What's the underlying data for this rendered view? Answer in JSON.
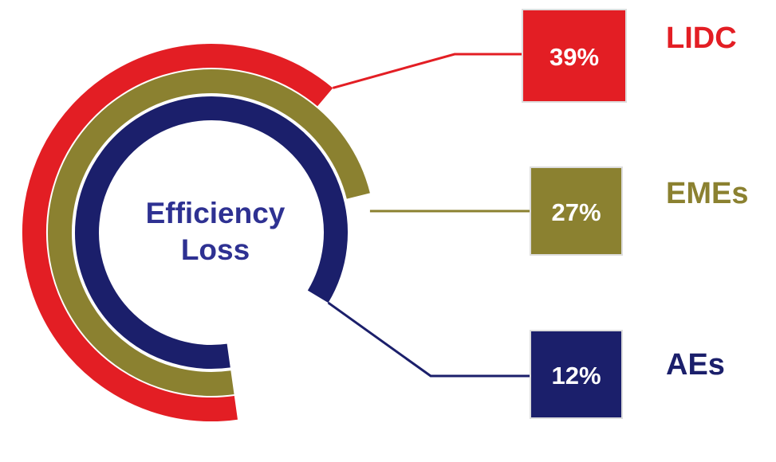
{
  "chart_data": {
    "type": "radial-bar",
    "center_label": "Efficiency Loss",
    "categories": [
      "LIDC",
      "EMEs",
      "AEs"
    ],
    "values": [
      39,
      27,
      12
    ],
    "value_labels": [
      "39%",
      "27%",
      "12%"
    ],
    "colors": [
      "#e31e24",
      "#8b8130",
      "#1b1f6b"
    ]
  }
}
